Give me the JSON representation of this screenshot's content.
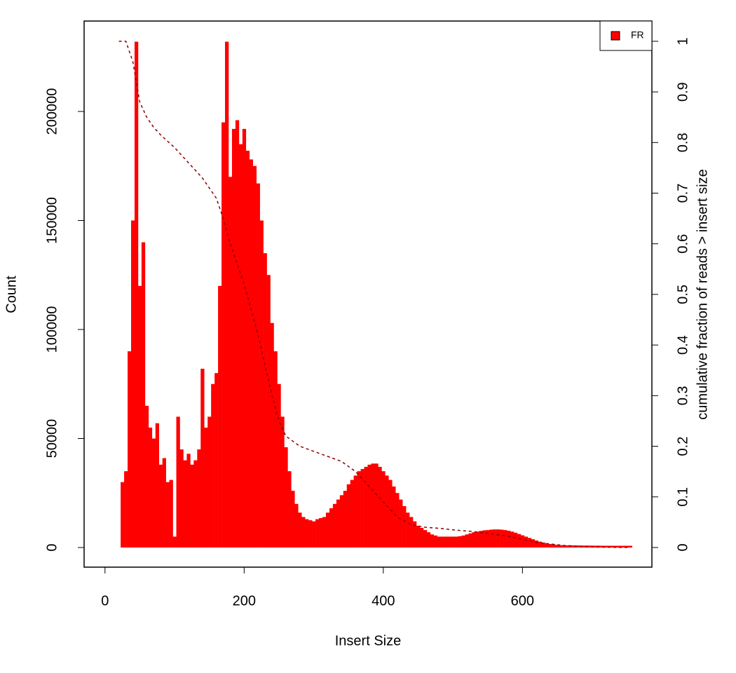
{
  "chart_data": {
    "type": "bar",
    "xlabel": "Insert Size",
    "ylabel": "Count",
    "y2label": "cumulative fraction of reads > insert size",
    "xlim": [
      -30,
      786
    ],
    "xticks": [
      0,
      200,
      400,
      600
    ],
    "ylim": [
      -9003,
      241479
    ],
    "yticks": [
      0,
      50000,
      100000,
      150000,
      200000
    ],
    "y2lim": [
      -0.0388,
      1.04
    ],
    "y2ticks": [
      0,
      0.1,
      0.2,
      0.3,
      0.4,
      0.5,
      0.6,
      0.7,
      0.8,
      0.9,
      1
    ],
    "legend": "top-right",
    "series": [
      {
        "name": "FR",
        "color": "#ff0000",
        "x": [
          20,
          25,
          30,
          35,
          40,
          45,
          50,
          55,
          60,
          65,
          70,
          75,
          80,
          85,
          90,
          95,
          100,
          105,
          110,
          115,
          120,
          125,
          130,
          135,
          140,
          145,
          150,
          155,
          160,
          165,
          170,
          175,
          180,
          185,
          190,
          195,
          200,
          205,
          210,
          215,
          220,
          225,
          230,
          235,
          240,
          245,
          250,
          255,
          260,
          265,
          270,
          275,
          280,
          285,
          290,
          295,
          300,
          305,
          310,
          315,
          320,
          325,
          330,
          335,
          340,
          345,
          350,
          355,
          360,
          365,
          370,
          375,
          380,
          385,
          390,
          395,
          400,
          405,
          410,
          415,
          420,
          425,
          430,
          435,
          440,
          445,
          450,
          455,
          460,
          465,
          470,
          475,
          480,
          485,
          490,
          495,
          500,
          505,
          510,
          515,
          520,
          525,
          530,
          535,
          540,
          545,
          550,
          555,
          560,
          565,
          570,
          575,
          580,
          585,
          590,
          595,
          600,
          605,
          610,
          615,
          620,
          625,
          630,
          635,
          640,
          645,
          650,
          655,
          660,
          665,
          670,
          675,
          680,
          685,
          690,
          695,
          700,
          705,
          710,
          715,
          720,
          725,
          730,
          735,
          740,
          745,
          750,
          755
        ],
        "values": [
          0,
          30000,
          35000,
          90000,
          150000,
          232000,
          120000,
          140000,
          65000,
          55000,
          50000,
          57000,
          38000,
          41000,
          30000,
          31000,
          5000,
          60000,
          45000,
          40000,
          43000,
          38000,
          40000,
          45000,
          82000,
          55000,
          60000,
          75000,
          80000,
          120000,
          195000,
          232000,
          170000,
          192000,
          196000,
          185000,
          192000,
          182000,
          178000,
          175000,
          167000,
          150000,
          135000,
          125000,
          103000,
          90000,
          75000,
          60000,
          46000,
          35000,
          26000,
          20000,
          16000,
          14000,
          13000,
          12500,
          12000,
          13000,
          13500,
          14000,
          16000,
          18000,
          20000,
          22000,
          24000,
          26000,
          29000,
          31000,
          33000,
          35000,
          36000,
          37000,
          38000,
          38500,
          38500,
          37000,
          35000,
          33000,
          31000,
          28000,
          25000,
          22000,
          19000,
          16000,
          14000,
          12000,
          10000,
          9000,
          8000,
          7000,
          6000,
          5500,
          5000,
          5000,
          5000,
          5000,
          5000,
          5000,
          5200,
          5500,
          6000,
          6500,
          7000,
          7300,
          7600,
          7900,
          8000,
          8200,
          8300,
          8300,
          8200,
          8000,
          7700,
          7300,
          6800,
          6200,
          5600,
          5000,
          4400,
          3800,
          3200,
          2700,
          2300,
          1900,
          1600,
          1400,
          1200,
          1100,
          1000,
          1000,
          1000,
          950,
          950,
          900,
          900,
          900,
          850,
          850,
          850,
          800,
          800,
          800,
          800,
          800,
          800,
          800,
          800,
          800
        ]
      },
      {
        "axis": "y2",
        "color": "#8b0000",
        "x": [
          20,
          30,
          40,
          50,
          60,
          70,
          80,
          100,
          120,
          140,
          160,
          170,
          180,
          200,
          220,
          240,
          250,
          260,
          280,
          300,
          320,
          340,
          360,
          380,
          400,
          420,
          440,
          460,
          480,
          500,
          540,
          580,
          620,
          660,
          700,
          755
        ],
        "values": [
          1,
          1,
          0.96,
          0.88,
          0.85,
          0.83,
          0.815,
          0.79,
          0.76,
          0.73,
          0.69,
          0.65,
          0.6,
          0.52,
          0.42,
          0.3,
          0.25,
          0.22,
          0.2,
          0.19,
          0.18,
          0.17,
          0.15,
          0.12,
          0.09,
          0.06,
          0.045,
          0.04,
          0.038,
          0.035,
          0.03,
          0.022,
          0.01,
          0.004,
          0.001,
          0
        ]
      }
    ]
  }
}
